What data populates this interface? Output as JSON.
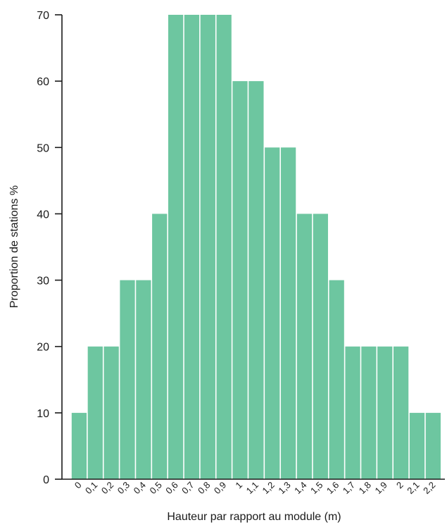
{
  "chart_data": {
    "type": "bar",
    "title": "",
    "xlabel": "Hauteur par rapport au module (m)",
    "ylabel": "Proportion de stations %",
    "categories": [
      "0",
      "0,1",
      "0,2",
      "0,3",
      "0,4",
      "0,5",
      "0,6",
      "0,7",
      "0,8",
      "0,9",
      "1",
      "1,1",
      "1,2",
      "1,3",
      "1,4",
      "1,5",
      "1,6",
      "1,7",
      "1,8",
      "1,9",
      "2",
      "2,1",
      "2,2"
    ],
    "values": [
      10,
      20,
      20,
      30,
      30,
      40,
      70,
      70,
      70,
      70,
      60,
      60,
      50,
      50,
      40,
      40,
      30,
      20,
      20,
      20,
      20,
      10,
      10
    ],
    "yticks": [
      "0",
      "10",
      "20",
      "30",
      "40",
      "50",
      "60",
      "70"
    ],
    "ylim": [
      0,
      70
    ],
    "bar_color": "#6dc6a0",
    "grid": false
  }
}
